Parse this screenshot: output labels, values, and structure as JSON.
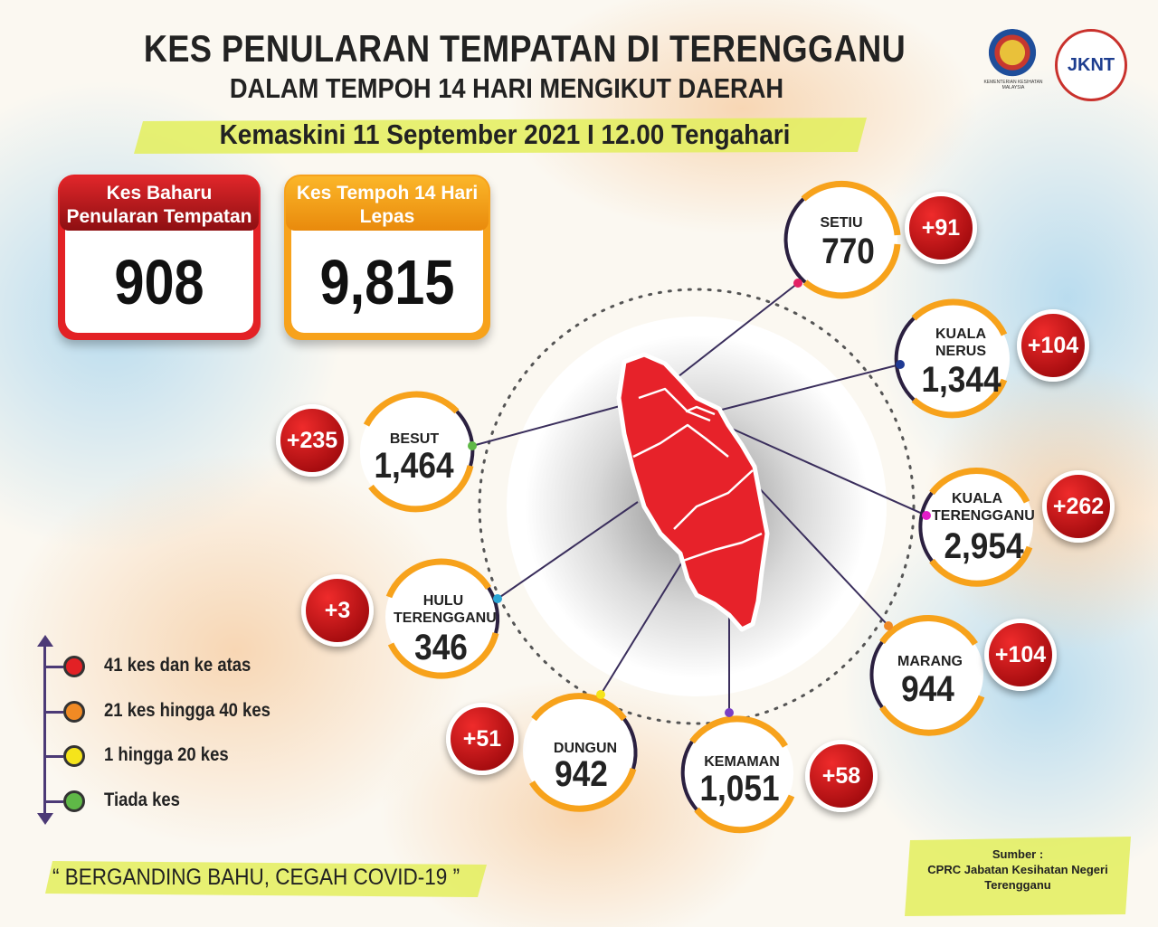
{
  "header": {
    "title": "KES PENULARAN TEMPATAN DI TERENGGANU",
    "subtitle": "DALAM TEMPOH 14 HARI MENGIKUT DAERAH",
    "updated": "Kemaskini 11 September 2021 I 12.00 Tengahari"
  },
  "logos": {
    "kkm": "KEMENTERIAN KESIHATAN MALAYSIA",
    "jknt": "JKNT"
  },
  "summary": {
    "new_cases_label": "Kes Baharu Penularan Tempatan",
    "new_cases_value": "908",
    "period_label": "Kes Tempoh 14 Hari Lepas",
    "period_value": "9,815"
  },
  "districts": [
    {
      "name": "SETIU",
      "total": "770",
      "new": "+91"
    },
    {
      "name": "KUALA NERUS",
      "total": "1,344",
      "new": "+104"
    },
    {
      "name": "BESUT",
      "total": "1,464",
      "new": "+235"
    },
    {
      "name": "KUALA TERENGGANU",
      "total": "2,954",
      "new": "+262"
    },
    {
      "name": "HULU TERENGGANU",
      "total": "346",
      "new": "+3"
    },
    {
      "name": "MARANG",
      "total": "944",
      "new": "+104"
    },
    {
      "name": "DUNGUN",
      "total": "942",
      "new": "+51"
    },
    {
      "name": "KEMAMAN",
      "total": "1,051",
      "new": "+58"
    }
  ],
  "legend": [
    {
      "label": "41 kes dan ke atas",
      "color": "#e32125"
    },
    {
      "label": "21 kes hingga 40 kes",
      "color": "#f08a24"
    },
    {
      "label": "1 hingga 20 kes",
      "color": "#f5e41b"
    },
    {
      "label": "Tiada kes",
      "color": "#5fb847"
    }
  ],
  "footer": {
    "slogan": "“ BERGANDING BAHU, CEGAH COVID-19 ”",
    "source_title": "Sumber :",
    "source_line1": "CPRC Jabatan Kesihatan Negeri",
    "source_line2": "Terengganu"
  },
  "colors": {
    "map_fill": "#e7222a",
    "ring_orange": "#f7a21b",
    "ring_dark": "#2b2040"
  }
}
